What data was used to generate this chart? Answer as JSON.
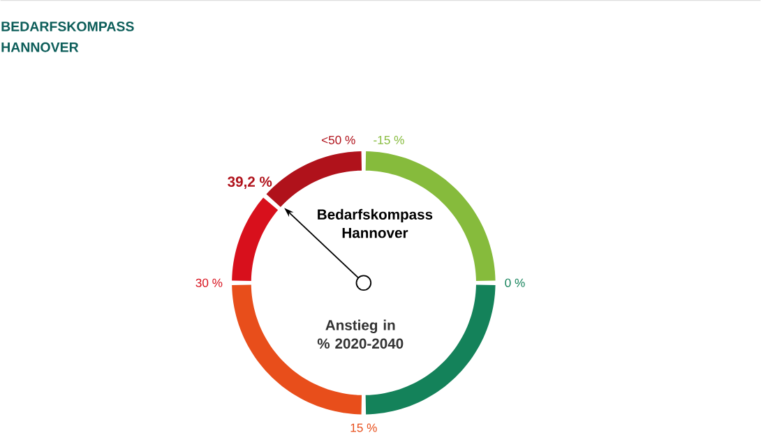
{
  "chart_data": {
    "type": "donut",
    "title": "BEDARFSKOMPASS HANNOVER",
    "categories": [
      "-15 %",
      "0 %",
      "15 %",
      "30 %",
      "39,2 %"
    ],
    "values": [
      25,
      25,
      25,
      11.5,
      13.5
    ],
    "colors": [
      "#86bb3c",
      "#14825a",
      "#e84e1b",
      "#d8101c",
      "#b0121b"
    ],
    "needle": "39,2 %",
    "annotations": [
      "<50 %",
      "Bedarfskompass Hannover",
      "Anstieg in % 2020-2040"
    ]
  }
}
